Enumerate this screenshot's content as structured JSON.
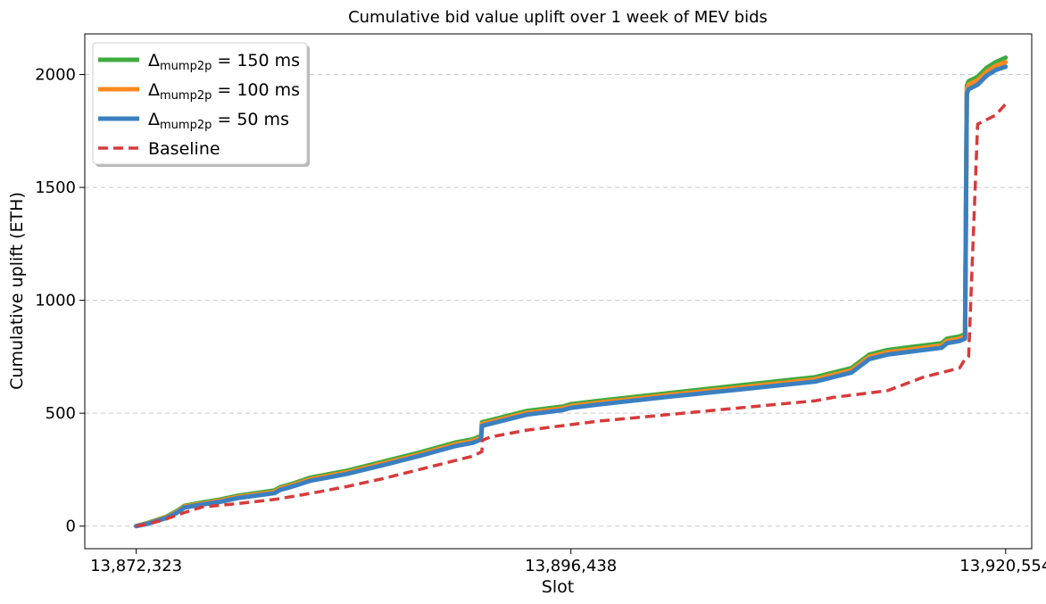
{
  "chart_data": {
    "type": "line",
    "title": "Cumulative bid value uplift over 1 week of MEV bids",
    "xlabel": "Slot",
    "ylabel": "Cumulative uplift (ETH)",
    "xlim": [
      13869470,
      13922000
    ],
    "ylim": [
      -100,
      2180
    ],
    "xticks": [
      13872323,
      13896438,
      13920554
    ],
    "xtick_labels": [
      "13,872,323",
      "13,896,438",
      "13,920,554"
    ],
    "yticks": [
      0,
      500,
      1000,
      1500,
      2000
    ],
    "ytick_labels": [
      "0",
      "500",
      "1000",
      "1500",
      "2000"
    ],
    "grid": "y-dashed",
    "legend_position": "top-left",
    "series": [
      {
        "name": "150 ms",
        "legend_prefix": "Δ",
        "legend_sub": "mump2p",
        "legend_eq": " = ",
        "color": "#3faa3f",
        "style": "solid",
        "x": [
          13872323,
          13873000,
          13874000,
          13874600,
          13875000,
          13876000,
          13877000,
          13878000,
          13880000,
          13880300,
          13881000,
          13882000,
          13884000,
          13886000,
          13888000,
          13890000,
          13891000,
          13891450,
          13891500,
          13892000,
          13894000,
          13896000,
          13896438,
          13898000,
          13902000,
          13906000,
          13910000,
          13912000,
          13913000,
          13914000,
          13916000,
          13917000,
          13917300,
          13918000,
          13918300,
          13918400,
          13918500,
          13919000,
          13919500,
          13920000,
          13920554
        ],
        "y": [
          0,
          15,
          42,
          68,
          90,
          105,
          118,
          135,
          158,
          172,
          188,
          215,
          245,
          285,
          325,
          370,
          385,
          400,
          460,
          470,
          510,
          530,
          540,
          555,
          590,
          625,
          660,
          700,
          760,
          780,
          800,
          810,
          830,
          840,
          850,
          1950,
          1970,
          1990,
          2030,
          2055,
          2075
        ]
      },
      {
        "name": "100 ms",
        "legend_prefix": "Δ",
        "legend_sub": "mump2p",
        "legend_eq": " = ",
        "color": "#ff8a1f",
        "style": "solid",
        "x": [
          13872323,
          13873000,
          13874000,
          13874600,
          13875000,
          13876000,
          13877000,
          13878000,
          13880000,
          13880300,
          13881000,
          13882000,
          13884000,
          13886000,
          13888000,
          13890000,
          13891000,
          13891450,
          13891500,
          13892000,
          13894000,
          13896000,
          13896438,
          13898000,
          13902000,
          13906000,
          13910000,
          13912000,
          13913000,
          13914000,
          13916000,
          13917000,
          13917300,
          13918000,
          13918300,
          13918400,
          13918500,
          13919000,
          13919500,
          13920000,
          13920554
        ],
        "y": [
          0,
          13,
          39,
          64,
          86,
          100,
          113,
          130,
          152,
          166,
          182,
          208,
          238,
          277,
          317,
          362,
          377,
          392,
          452,
          462,
          502,
          522,
          532,
          547,
          582,
          616,
          650,
          690,
          750,
          770,
          790,
          800,
          820,
          830,
          840,
          1935,
          1955,
          1975,
          2012,
          2038,
          2055
        ]
      },
      {
        "name": "50 ms",
        "legend_prefix": "Δ",
        "legend_sub": "mump2p",
        "legend_eq": " = ",
        "color": "#3a80c0",
        "style": "solid",
        "x": [
          13872323,
          13873000,
          13874000,
          13874600,
          13875000,
          13876000,
          13877000,
          13878000,
          13880000,
          13880300,
          13881000,
          13882000,
          13884000,
          13886000,
          13888000,
          13890000,
          13891000,
          13891450,
          13891500,
          13892000,
          13894000,
          13896000,
          13896438,
          13898000,
          13902000,
          13906000,
          13910000,
          13912000,
          13913000,
          13914000,
          13916000,
          13917000,
          13917300,
          13918000,
          13918300,
          13918400,
          13918500,
          13919000,
          13919500,
          13920000,
          13920554
        ],
        "y": [
          0,
          11,
          36,
          60,
          82,
          96,
          108,
          125,
          146,
          160,
          176,
          201,
          231,
          270,
          310,
          354,
          369,
          384,
          444,
          454,
          494,
          514,
          524,
          539,
          574,
          607,
          640,
          680,
          740,
          760,
          780,
          790,
          810,
          820,
          830,
          1915,
          1935,
          1955,
          1995,
          2020,
          2035
        ]
      },
      {
        "name": "Baseline",
        "color": "#d63b3b",
        "style": "dashed",
        "x": [
          13872323,
          13873000,
          13874000,
          13875000,
          13876000,
          13878000,
          13880000,
          13882000,
          13884000,
          13886000,
          13888000,
          13890000,
          13891000,
          13891500,
          13891520,
          13892000,
          13894000,
          13896000,
          13898000,
          13902000,
          13906000,
          13910000,
          13911000,
          13912000,
          13914000,
          13916000,
          13917000,
          13917500,
          13918000,
          13918300,
          13918400,
          13918500,
          13919000,
          13920000,
          13920554
        ],
        "y": [
          0,
          10,
          32,
          60,
          85,
          100,
          118,
          145,
          175,
          210,
          250,
          290,
          310,
          330,
          380,
          395,
          425,
          445,
          465,
          495,
          525,
          555,
          570,
          580,
          600,
          660,
          680,
          690,
          700,
          740,
          745,
          750,
          1780,
          1820,
          1870
        ]
      }
    ]
  }
}
